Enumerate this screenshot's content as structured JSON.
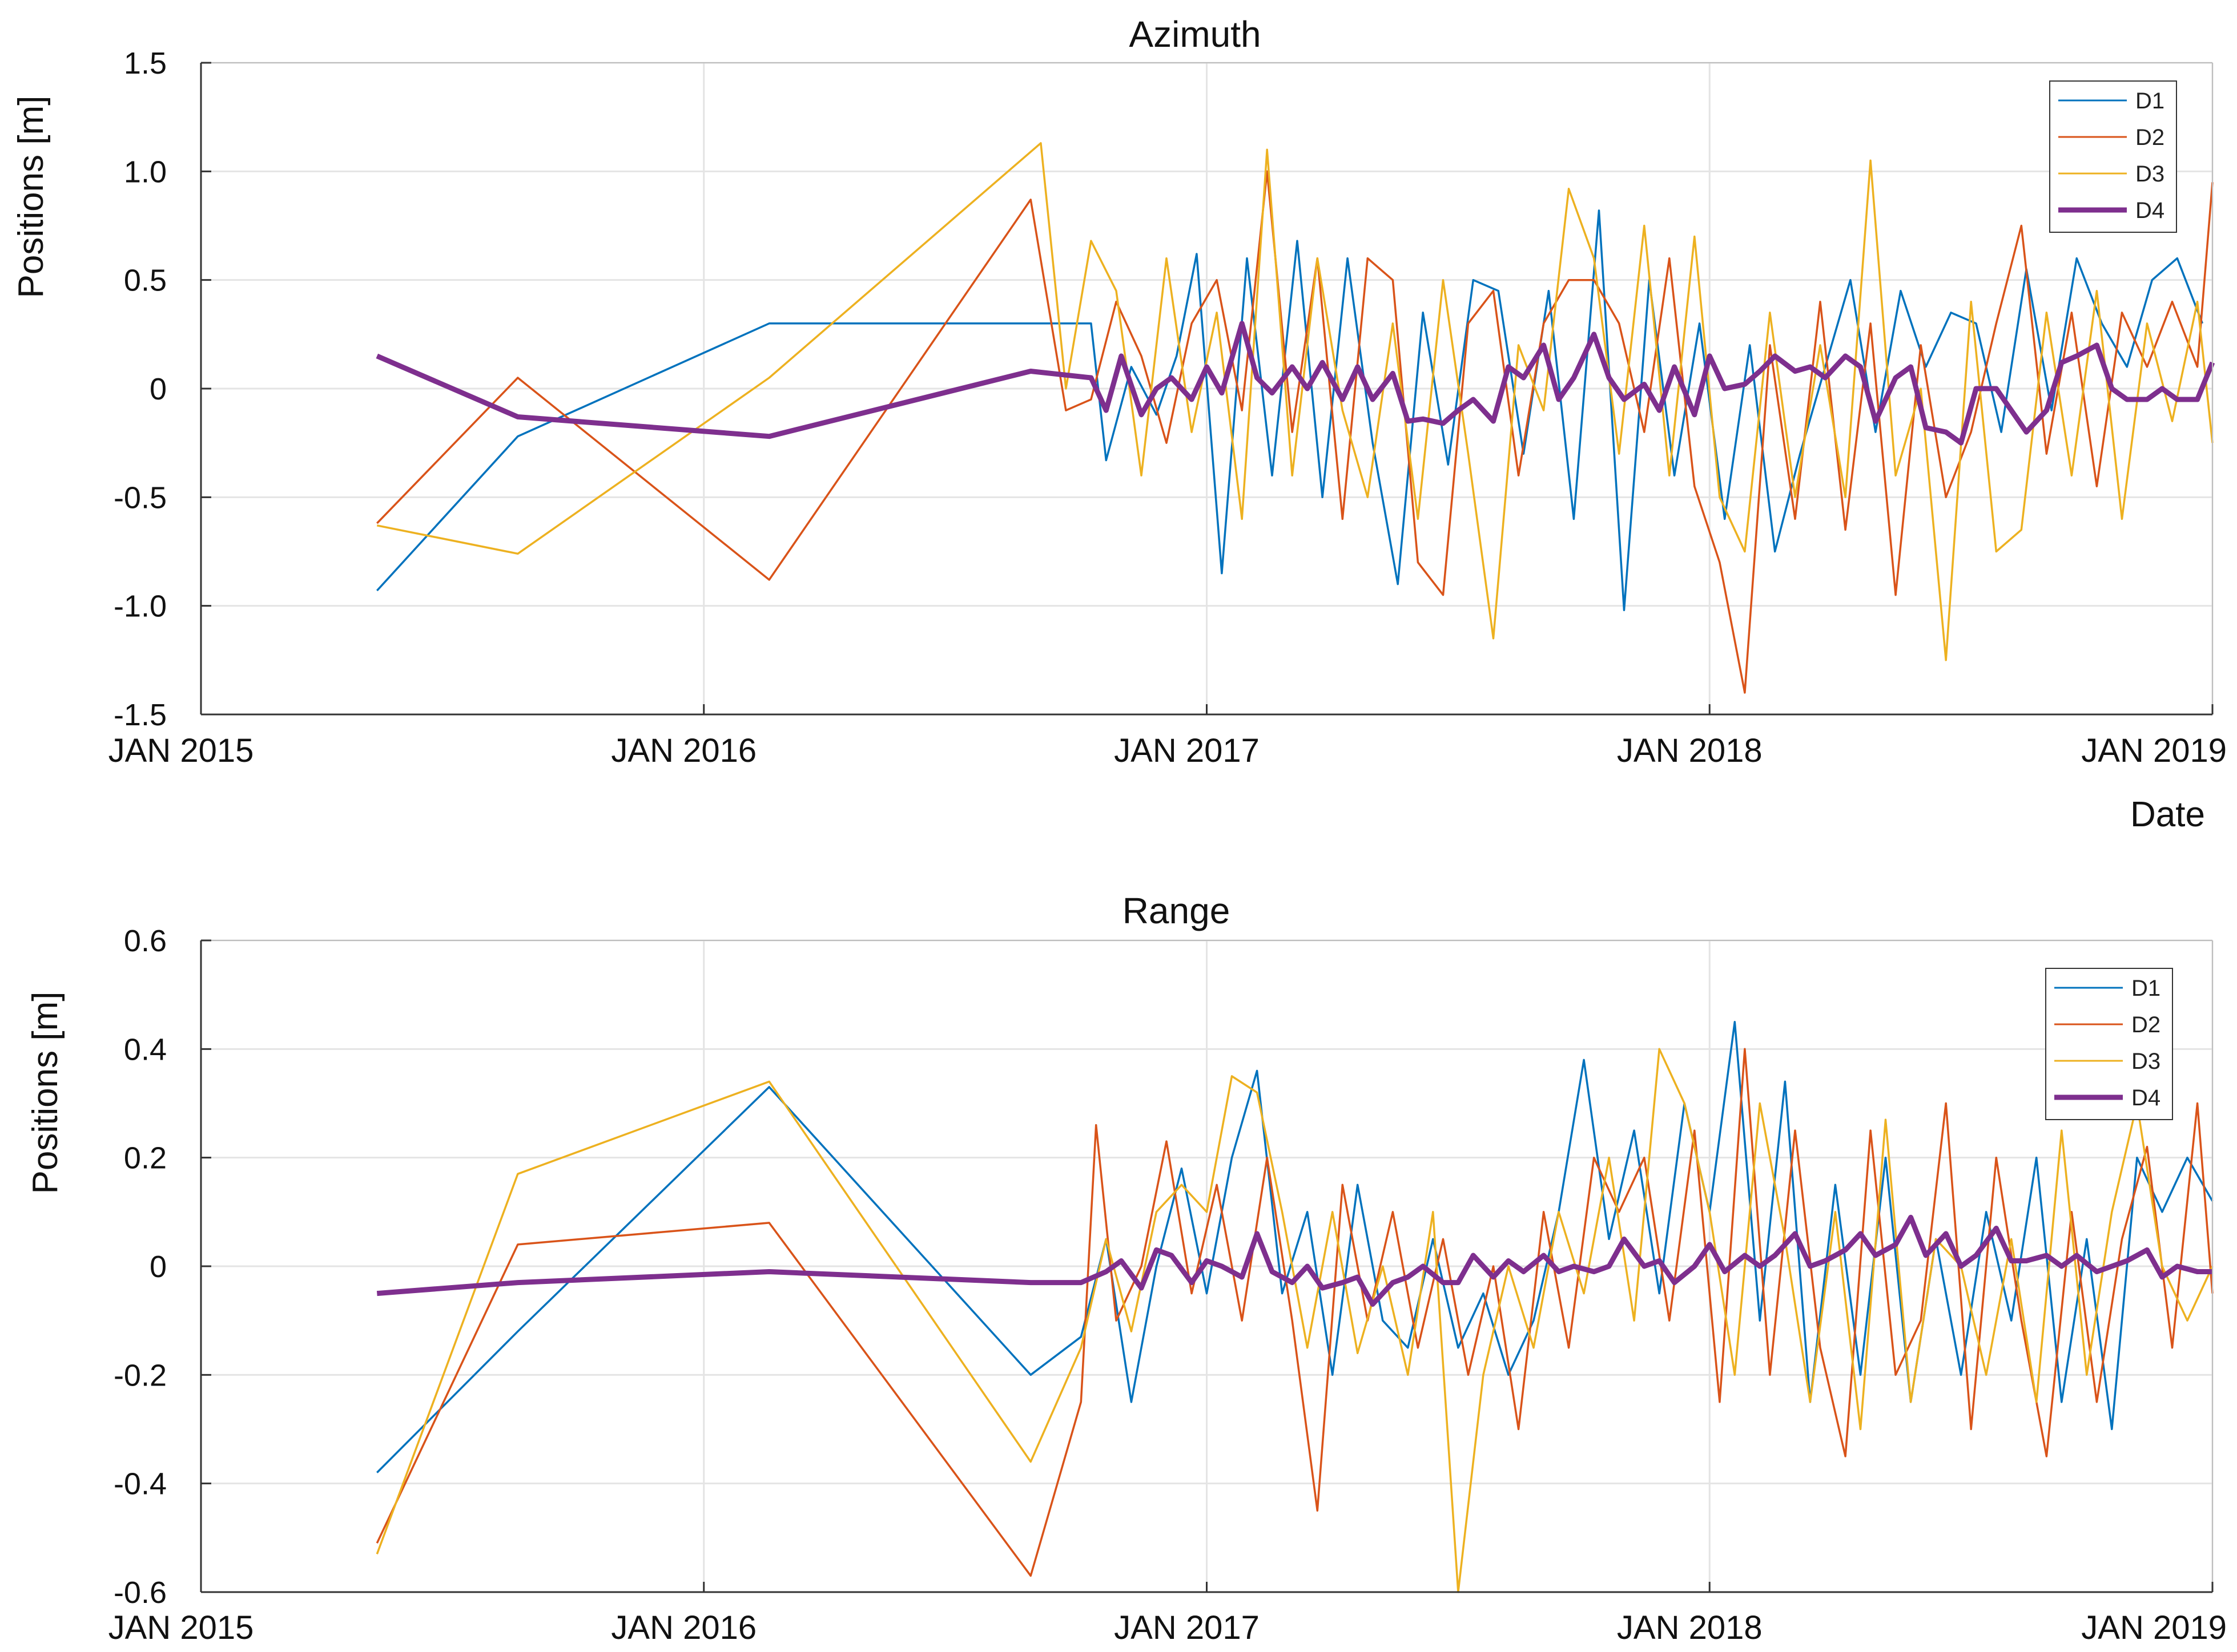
{
  "chart_data": [
    {
      "type": "line",
      "title": "Azimuth",
      "xlabel": "Date",
      "ylabel": "Positions [m]",
      "ylim": [
        -1.5,
        1.5
      ],
      "yticks": [
        1.5,
        1.0,
        0.5,
        0,
        -0.5,
        -1.0,
        -1.5
      ],
      "ytick_labels": [
        "1.5",
        "1.0",
        "0.5",
        "0",
        "-0.5",
        "-1.0",
        "-1.5"
      ],
      "xlim": [
        2015.0,
        2019.0
      ],
      "xticks": [
        2015,
        2016,
        2017,
        2018,
        2019
      ],
      "xtick_labels": [
        "JAN 2015",
        "JAN 2016",
        "JAN 2017",
        "JAN 2018",
        "JAN 2019"
      ],
      "grid": true,
      "legend_position": "top-right",
      "series": [
        {
          "name": "D1",
          "color": "#0072BD",
          "x": [
            2015.35,
            2015.63,
            2016.13,
            2016.77,
            2016.8,
            2016.85,
            2016.9,
            2016.94,
            2016.98,
            2017.03,
            2017.08,
            2017.13,
            2017.18,
            2017.23,
            2017.28,
            2017.33,
            2017.38,
            2017.43,
            2017.48,
            2017.53,
            2017.58,
            2017.63,
            2017.68,
            2017.73,
            2017.78,
            2017.83,
            2017.88,
            2017.93,
            2017.98,
            2018.03,
            2018.08,
            2018.13,
            2018.18,
            2018.23,
            2018.28,
            2018.33,
            2018.38,
            2018.43,
            2018.48,
            2018.53,
            2018.58,
            2018.63,
            2018.68,
            2018.73,
            2018.78,
            2018.83,
            2018.88,
            2018.93,
            2018.98
          ],
          "y": [
            -0.93,
            -0.22,
            0.3,
            0.3,
            -0.33,
            0.1,
            -0.12,
            0.15,
            0.62,
            -0.85,
            0.6,
            -0.4,
            0.68,
            -0.5,
            0.6,
            -0.25,
            -0.9,
            0.35,
            -0.35,
            0.5,
            0.45,
            -0.3,
            0.45,
            -0.6,
            0.82,
            -1.02,
            0.5,
            -0.4,
            0.3,
            -0.6,
            0.2,
            -0.75,
            -0.3,
            0.1,
            0.5,
            -0.2,
            0.45,
            0.1,
            0.35,
            0.3,
            -0.2,
            0.55,
            -0.1,
            0.6,
            0.3,
            0.1,
            0.5,
            0.6,
            0.3
          ]
        },
        {
          "name": "D2",
          "color": "#D95319",
          "x": [
            2015.35,
            2015.63,
            2016.13,
            2016.65,
            2016.72,
            2016.77,
            2016.82,
            2016.87,
            2016.92,
            2016.97,
            2017.02,
            2017.07,
            2017.12,
            2017.17,
            2017.22,
            2017.27,
            2017.32,
            2017.37,
            2017.42,
            2017.47,
            2017.52,
            2017.57,
            2017.62,
            2017.67,
            2017.72,
            2017.77,
            2017.82,
            2017.87,
            2017.92,
            2017.97,
            2018.02,
            2018.07,
            2018.12,
            2018.17,
            2018.22,
            2018.27,
            2018.32,
            2018.37,
            2018.42,
            2018.47,
            2018.52,
            2018.57,
            2018.62,
            2018.67,
            2018.72,
            2018.77,
            2018.82,
            2018.87,
            2018.92,
            2018.97,
            2019.0
          ],
          "y": [
            -0.62,
            0.05,
            -0.88,
            0.87,
            -0.1,
            -0.05,
            0.4,
            0.15,
            -0.25,
            0.3,
            0.5,
            -0.1,
            1.0,
            -0.2,
            0.6,
            -0.6,
            0.6,
            0.5,
            -0.8,
            -0.95,
            0.3,
            0.45,
            -0.4,
            0.3,
            0.5,
            0.5,
            0.3,
            -0.2,
            0.6,
            -0.45,
            -0.8,
            -1.4,
            0.2,
            -0.6,
            0.4,
            -0.65,
            0.3,
            -0.95,
            0.2,
            -0.5,
            -0.2,
            0.3,
            0.75,
            -0.3,
            0.35,
            -0.45,
            0.35,
            0.1,
            0.4,
            0.1,
            0.95
          ]
        },
        {
          "name": "D3",
          "color": "#EDB120",
          "x": [
            2015.35,
            2015.63,
            2016.13,
            2016.67,
            2016.72,
            2016.77,
            2016.82,
            2016.87,
            2016.92,
            2016.97,
            2017.02,
            2017.07,
            2017.12,
            2017.17,
            2017.22,
            2017.27,
            2017.32,
            2017.37,
            2017.42,
            2017.47,
            2017.52,
            2017.57,
            2017.62,
            2017.67,
            2017.72,
            2017.77,
            2017.82,
            2017.87,
            2017.92,
            2017.97,
            2018.02,
            2018.07,
            2018.12,
            2018.17,
            2018.22,
            2018.27,
            2018.32,
            2018.37,
            2018.42,
            2018.47,
            2018.52,
            2018.57,
            2018.62,
            2018.67,
            2018.72,
            2018.77,
            2018.82,
            2018.87,
            2018.92,
            2018.97,
            2019.0
          ],
          "y": [
            -0.63,
            -0.76,
            0.05,
            1.13,
            0.0,
            0.68,
            0.45,
            -0.4,
            0.6,
            -0.2,
            0.35,
            -0.6,
            1.1,
            -0.4,
            0.6,
            -0.1,
            -0.5,
            0.3,
            -0.6,
            0.5,
            -0.3,
            -1.15,
            0.2,
            -0.1,
            0.92,
            0.6,
            -0.3,
            0.75,
            -0.4,
            0.7,
            -0.5,
            -0.75,
            0.35,
            -0.5,
            0.2,
            -0.5,
            1.05,
            -0.4,
            0.0,
            -1.25,
            0.4,
            -0.75,
            -0.65,
            0.35,
            -0.4,
            0.45,
            -0.6,
            0.3,
            -0.15,
            0.4,
            -0.25
          ]
        },
        {
          "name": "D4",
          "color": "#7E2F8E",
          "x": [
            2015.35,
            2015.63,
            2016.13,
            2016.65,
            2016.77,
            2016.8,
            2016.83,
            2016.87,
            2016.9,
            2016.93,
            2016.97,
            2017.0,
            2017.03,
            2017.07,
            2017.1,
            2017.13,
            2017.17,
            2017.2,
            2017.23,
            2017.27,
            2017.3,
            2017.33,
            2017.37,
            2017.4,
            2017.43,
            2017.47,
            2017.5,
            2017.53,
            2017.57,
            2017.6,
            2017.63,
            2017.67,
            2017.7,
            2017.73,
            2017.77,
            2017.8,
            2017.83,
            2017.87,
            2017.9,
            2017.93,
            2017.97,
            2018.0,
            2018.03,
            2018.07,
            2018.1,
            2018.13,
            2018.17,
            2018.2,
            2018.23,
            2018.27,
            2018.3,
            2018.33,
            2018.37,
            2018.4,
            2018.43,
            2018.47,
            2018.5,
            2018.53,
            2018.57,
            2018.6,
            2018.63,
            2018.67,
            2018.7,
            2018.73,
            2018.77,
            2018.8,
            2018.83,
            2018.87,
            2018.9,
            2018.93,
            2018.97,
            2019.0
          ],
          "y": [
            0.15,
            -0.13,
            -0.22,
            0.08,
            0.05,
            -0.1,
            0.15,
            -0.12,
            0.0,
            0.05,
            -0.05,
            0.1,
            -0.02,
            0.3,
            0.05,
            -0.02,
            0.1,
            0.0,
            0.12,
            -0.05,
            0.1,
            -0.05,
            0.07,
            -0.15,
            -0.14,
            -0.16,
            -0.1,
            -0.05,
            -0.15,
            0.1,
            0.05,
            0.2,
            -0.05,
            0.05,
            0.25,
            0.05,
            -0.05,
            0.02,
            -0.1,
            0.1,
            -0.12,
            0.15,
            0.0,
            0.02,
            0.08,
            0.15,
            0.08,
            0.1,
            0.05,
            0.15,
            0.1,
            -0.15,
            0.05,
            0.1,
            -0.18,
            -0.2,
            -0.25,
            0.0,
            0.0,
            -0.1,
            -0.2,
            -0.1,
            0.12,
            0.15,
            0.2,
            0.0,
            -0.05,
            -0.05,
            0.0,
            -0.05,
            -0.05,
            0.12
          ]
        }
      ]
    },
    {
      "type": "line",
      "title": "Range",
      "xlabel": "",
      "ylabel": "Positions [m]",
      "ylim": [
        -0.6,
        0.6
      ],
      "yticks": [
        0.6,
        0.4,
        0.2,
        0,
        -0.2,
        -0.4,
        -0.6
      ],
      "ytick_labels": [
        "0.6",
        "0.4",
        "0.2",
        "0",
        "-0.2",
        "-0.4",
        "-0.6"
      ],
      "xlim": [
        2015.0,
        2019.0
      ],
      "xticks": [
        2015,
        2016,
        2017,
        2018,
        2019
      ],
      "xtick_labels": [
        "JAN 2015",
        "JAN 2016",
        "JAN 2017",
        "JAN 2018",
        "JAN 2019"
      ],
      "grid": true,
      "legend_position": "top-right",
      "series": [
        {
          "name": "D1",
          "color": "#0072BD",
          "x": [
            2015.35,
            2015.63,
            2016.13,
            2016.65,
            2016.75,
            2016.8,
            2016.85,
            2016.9,
            2016.95,
            2017.0,
            2017.05,
            2017.1,
            2017.15,
            2017.2,
            2017.25,
            2017.3,
            2017.35,
            2017.4,
            2017.45,
            2017.5,
            2017.55,
            2017.6,
            2017.65,
            2017.7,
            2017.75,
            2017.8,
            2017.85,
            2017.9,
            2017.95,
            2018.0,
            2018.05,
            2018.1,
            2018.15,
            2018.2,
            2018.25,
            2018.3,
            2018.35,
            2018.4,
            2018.45,
            2018.5,
            2018.55,
            2018.6,
            2018.65,
            2018.7,
            2018.75,
            2018.8,
            2018.85,
            2018.9,
            2018.95,
            2019.0
          ],
          "y": [
            -0.38,
            -0.12,
            0.33,
            -0.2,
            -0.13,
            0.05,
            -0.25,
            0.0,
            0.18,
            -0.05,
            0.2,
            0.36,
            -0.05,
            0.1,
            -0.2,
            0.15,
            -0.1,
            -0.15,
            0.05,
            -0.15,
            -0.05,
            -0.2,
            -0.1,
            0.1,
            0.38,
            0.05,
            0.25,
            -0.05,
            0.3,
            0.1,
            0.45,
            -0.1,
            0.34,
            -0.25,
            0.15,
            -0.2,
            0.2,
            -0.25,
            0.05,
            -0.2,
            0.1,
            -0.1,
            0.2,
            -0.25,
            0.05,
            -0.3,
            0.2,
            0.1,
            0.2,
            0.12
          ]
        },
        {
          "name": "D2",
          "color": "#D95319",
          "x": [
            2015.35,
            2015.63,
            2016.13,
            2016.65,
            2016.75,
            2016.78,
            2016.82,
            2016.87,
            2016.92,
            2016.97,
            2017.02,
            2017.07,
            2017.12,
            2017.17,
            2017.22,
            2017.27,
            2017.32,
            2017.37,
            2017.42,
            2017.47,
            2017.52,
            2017.57,
            2017.62,
            2017.67,
            2017.72,
            2017.77,
            2017.82,
            2017.87,
            2017.92,
            2017.97,
            2018.02,
            2018.07,
            2018.12,
            2018.17,
            2018.22,
            2018.27,
            2018.32,
            2018.37,
            2018.42,
            2018.47,
            2018.52,
            2018.57,
            2018.62,
            2018.67,
            2018.72,
            2018.77,
            2018.82,
            2018.87,
            2018.92,
            2018.97,
            2019.0
          ],
          "y": [
            -0.51,
            0.04,
            0.08,
            -0.57,
            -0.25,
            0.26,
            -0.1,
            0.0,
            0.23,
            -0.05,
            0.15,
            -0.1,
            0.2,
            -0.1,
            -0.45,
            0.15,
            -0.1,
            0.1,
            -0.15,
            0.05,
            -0.2,
            0.0,
            -0.3,
            0.1,
            -0.15,
            0.2,
            0.1,
            0.2,
            -0.1,
            0.25,
            -0.25,
            0.4,
            -0.2,
            0.25,
            -0.15,
            -0.35,
            0.25,
            -0.2,
            -0.1,
            0.3,
            -0.3,
            0.2,
            -0.1,
            -0.35,
            0.1,
            -0.25,
            0.05,
            0.22,
            -0.15,
            0.3,
            -0.05
          ]
        },
        {
          "name": "D3",
          "color": "#EDB120",
          "x": [
            2015.35,
            2015.63,
            2016.13,
            2016.65,
            2016.75,
            2016.8,
            2016.85,
            2016.9,
            2016.95,
            2017.0,
            2017.05,
            2017.1,
            2017.15,
            2017.2,
            2017.25,
            2017.3,
            2017.35,
            2017.4,
            2017.45,
            2017.5,
            2017.55,
            2017.6,
            2017.65,
            2017.7,
            2017.75,
            2017.8,
            2017.85,
            2017.9,
            2017.95,
            2018.0,
            2018.05,
            2018.1,
            2018.15,
            2018.2,
            2018.25,
            2018.3,
            2018.35,
            2018.4,
            2018.45,
            2018.5,
            2018.55,
            2018.6,
            2018.65,
            2018.7,
            2018.75,
            2018.8,
            2018.85,
            2018.9,
            2018.95,
            2019.0
          ],
          "y": [
            -0.53,
            0.17,
            0.34,
            -0.36,
            -0.15,
            0.05,
            -0.12,
            0.1,
            0.15,
            0.1,
            0.35,
            0.32,
            0.1,
            -0.15,
            0.1,
            -0.16,
            0.0,
            -0.2,
            0.1,
            -0.6,
            -0.2,
            0.0,
            -0.15,
            0.1,
            -0.05,
            0.2,
            -0.1,
            0.4,
            0.3,
            0.1,
            -0.2,
            0.3,
            0.05,
            -0.25,
            0.1,
            -0.3,
            0.27,
            -0.25,
            0.05,
            0.0,
            -0.2,
            0.05,
            -0.25,
            0.25,
            -0.2,
            0.1,
            0.3,
            0.0,
            -0.1,
            0.0
          ]
        },
        {
          "name": "D4",
          "color": "#7E2F8E",
          "x": [
            2015.35,
            2015.63,
            2016.13,
            2016.65,
            2016.75,
            2016.8,
            2016.83,
            2016.87,
            2016.9,
            2016.93,
            2016.97,
            2017.0,
            2017.03,
            2017.07,
            2017.1,
            2017.13,
            2017.17,
            2017.2,
            2017.23,
            2017.27,
            2017.3,
            2017.33,
            2017.37,
            2017.4,
            2017.43,
            2017.47,
            2017.5,
            2017.53,
            2017.57,
            2017.6,
            2017.63,
            2017.67,
            2017.7,
            2017.73,
            2017.77,
            2017.8,
            2017.83,
            2017.87,
            2017.9,
            2017.93,
            2017.97,
            2018.0,
            2018.03,
            2018.07,
            2018.1,
            2018.13,
            2018.17,
            2018.2,
            2018.23,
            2018.27,
            2018.3,
            2018.33,
            2018.37,
            2018.4,
            2018.43,
            2018.47,
            2018.5,
            2018.53,
            2018.57,
            2018.6,
            2018.63,
            2018.67,
            2018.7,
            2018.73,
            2018.77,
            2018.8,
            2018.83,
            2018.87,
            2018.9,
            2018.93,
            2018.97,
            2019.0
          ],
          "y": [
            -0.05,
            -0.03,
            -0.01,
            -0.03,
            -0.03,
            -0.01,
            0.01,
            -0.04,
            0.03,
            0.02,
            -0.03,
            0.01,
            0.0,
            -0.02,
            0.06,
            -0.01,
            -0.03,
            0.0,
            -0.04,
            -0.03,
            -0.02,
            -0.07,
            -0.03,
            -0.02,
            0.0,
            -0.03,
            -0.03,
            0.02,
            -0.02,
            0.01,
            -0.01,
            0.02,
            -0.01,
            0.0,
            -0.01,
            0.0,
            0.05,
            0.0,
            0.01,
            -0.03,
            0.0,
            0.04,
            -0.01,
            0.02,
            0.0,
            0.02,
            0.06,
            0.0,
            0.01,
            0.03,
            0.06,
            0.02,
            0.04,
            0.09,
            0.02,
            0.06,
            0.0,
            0.02,
            0.07,
            0.01,
            0.01,
            0.02,
            0.0,
            0.02,
            -0.01,
            0.0,
            0.01,
            0.03,
            -0.02,
            0.0,
            -0.01,
            -0.01
          ]
        }
      ]
    }
  ]
}
